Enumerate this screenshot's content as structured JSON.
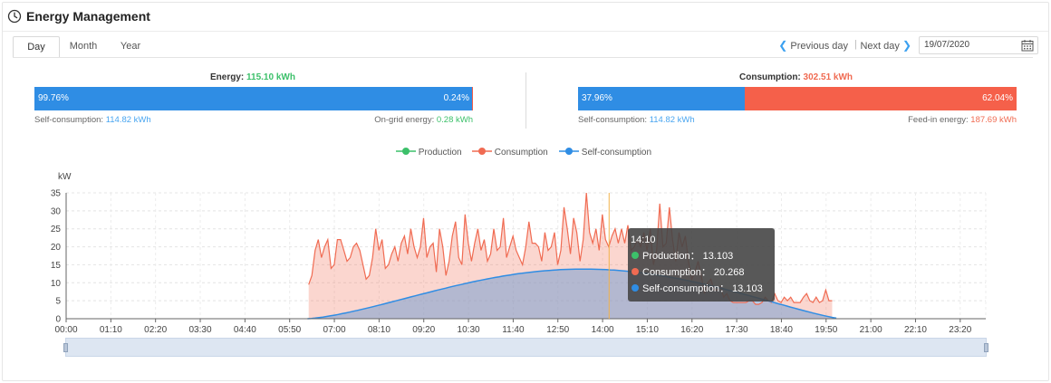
{
  "header": {
    "title": "Energy Management"
  },
  "tabs": [
    {
      "label": "Day",
      "active": true
    },
    {
      "label": "Month",
      "active": false
    },
    {
      "label": "Year",
      "active": false
    }
  ],
  "nav": {
    "previous": "Previous day",
    "separator": "|",
    "next": "Next day",
    "date": "19/07/2020"
  },
  "energy": {
    "title": "Energy:",
    "value": "115.10 kWh",
    "left_pct": "99.76%",
    "right_pct": "0.24%",
    "fraction": 0.9976,
    "self_label": "Self-consumption:",
    "self_value": "114.82 kWh",
    "grid_label": "On-grid energy:",
    "grid_value": "0.28 kWh"
  },
  "consumption": {
    "title": "Consumption:",
    "value": "302.51 kWh",
    "left_pct": "37.96%",
    "right_pct": "62.04%",
    "fraction": 0.3796,
    "self_label": "Self-consumption:",
    "self_value": "114.82 kWh",
    "feed_label": "Feed-in energy:",
    "feed_value": "187.69 kWh"
  },
  "colors": {
    "production": "#3cc06a",
    "consumption": "#f06b52",
    "self": "#2f8de4",
    "bar_blue": "#2f8de4",
    "bar_red": "#f5604a"
  },
  "chart_data": {
    "type": "area",
    "legend": [
      "Production",
      "Consumption",
      "Self-consumption"
    ],
    "ylabel": "kW",
    "ylim": [
      0,
      35
    ],
    "yticks": [
      0,
      5,
      10,
      15,
      20,
      25,
      30,
      35
    ],
    "xlim_hours": [
      0,
      24
    ],
    "xticks": [
      "00:00",
      "01:10",
      "02:20",
      "03:30",
      "04:40",
      "05:50",
      "07:00",
      "08:10",
      "09:20",
      "10:30",
      "11:40",
      "12:50",
      "14:00",
      "15:10",
      "16:20",
      "17:30",
      "18:40",
      "19:50",
      "21:00",
      "22:10",
      "23:20"
    ],
    "consumption_start_hour": 6.33,
    "consumption_step_hours": 0.0833,
    "consumption": [
      9.5,
      12,
      19,
      22,
      17,
      20,
      22,
      14,
      15,
      22,
      22,
      19,
      16,
      17,
      20,
      21,
      19,
      15,
      11,
      12,
      17,
      25,
      19,
      22,
      14,
      15,
      18,
      20,
      16,
      21,
      23,
      18,
      25,
      20,
      17,
      20,
      28,
      17,
      20,
      21,
      13,
      25,
      20,
      12,
      16,
      23,
      27,
      17,
      15,
      29,
      21,
      16,
      21,
      25,
      19,
      22,
      16,
      18,
      25,
      19,
      20,
      28,
      17,
      20,
      23,
      19,
      17,
      15,
      20,
      27,
      21,
      21,
      20,
      16,
      24,
      19,
      20,
      24,
      15,
      19,
      31,
      25,
      18,
      28,
      24,
      16,
      22,
      35,
      24,
      21,
      25,
      19,
      29,
      22,
      20,
      23,
      25,
      21,
      25,
      21,
      26,
      19,
      20,
      22,
      20,
      24,
      19,
      25,
      15,
      19,
      32,
      20,
      21,
      31,
      22,
      16,
      24,
      20,
      23,
      16,
      11,
      13,
      16,
      12,
      7,
      10,
      11,
      8,
      8,
      9,
      6,
      7,
      5,
      4.5,
      4.5,
      4.5,
      4.5,
      4.5,
      5,
      5,
      4,
      4,
      4.5,
      6,
      5,
      4.5,
      7,
      5,
      4.5,
      6,
      5,
      6,
      4.5,
      4.5,
      4.5,
      6,
      7,
      5,
      4.5,
      6,
      4.5,
      5,
      8,
      5,
      5
    ],
    "self_consumption_curve": {
      "start_hour": 6.3,
      "peak_hour": 13.5,
      "peak_kw": 13.8,
      "end_hour": 20.2
    },
    "cursor": {
      "time": "14:10",
      "hour": 14.17
    },
    "tooltip": {
      "time": "14:10",
      "rows": [
        {
          "label": "Production",
          "value": "13.103"
        },
        {
          "label": "Consumption",
          "value": "20.268"
        },
        {
          "label": "Self-consumption",
          "value": "13.103"
        }
      ]
    }
  }
}
